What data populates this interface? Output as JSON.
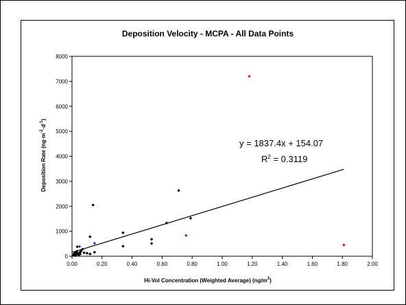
{
  "chart_data": {
    "type": "scatter",
    "title": "Deposition Velocity - MCPA - All Data Points",
    "xlabel": {
      "main": "Hi-Vol Concentration (Weighted Average) (ng/m",
      "sup": "3",
      "end": ")"
    },
    "ylabel": {
      "main": "Deposition Rate (ng·m",
      "sup1": "-2",
      "mid": "·d",
      "sup2": "-1",
      "end": ")"
    },
    "xlim": [
      0,
      2
    ],
    "ylim": [
      0,
      8000
    ],
    "xticks": [
      "0.00",
      "0.20",
      "0.40",
      "0.60",
      "0.80",
      "1.00",
      "1.20",
      "1.40",
      "1.60",
      "1.80",
      "2.00"
    ],
    "xtick_values": [
      0,
      0.2,
      0.4,
      0.6,
      0.8,
      1.0,
      1.2,
      1.4,
      1.6,
      1.8,
      2.0
    ],
    "yticks": [
      "0",
      "1000",
      "2000",
      "3000",
      "4000",
      "5000",
      "6000",
      "7000",
      "8000"
    ],
    "ytick_values": [
      0,
      1000,
      2000,
      3000,
      4000,
      5000,
      6000,
      7000,
      8000
    ],
    "grid": false,
    "legend": "none",
    "series": [
      {
        "color": "#000000",
        "points": [
          [
            0.01,
            40
          ],
          [
            0.012,
            80
          ],
          [
            0.015,
            60
          ],
          [
            0.018,
            120
          ],
          [
            0.02,
            30
          ],
          [
            0.022,
            90
          ],
          [
            0.025,
            140
          ],
          [
            0.03,
            70
          ],
          [
            0.032,
            200
          ],
          [
            0.035,
            380
          ],
          [
            0.04,
            110
          ],
          [
            0.045,
            50
          ],
          [
            0.05,
            150
          ],
          [
            0.055,
            90
          ],
          [
            0.06,
            200
          ],
          [
            0.07,
            280
          ],
          [
            0.08,
            140
          ],
          [
            0.1,
            120
          ],
          [
            0.12,
            780
          ],
          [
            0.12,
            90
          ],
          [
            0.14,
            2050
          ],
          [
            0.15,
            160
          ],
          [
            0.34,
            940
          ],
          [
            0.34,
            400
          ],
          [
            0.53,
            680
          ],
          [
            0.53,
            510
          ],
          [
            0.63,
            1330
          ],
          [
            0.71,
            2630
          ],
          [
            0.79,
            1520
          ]
        ]
      },
      {
        "color": "#1f3fbf",
        "points": [
          [
            0.05,
            390
          ],
          [
            0.15,
            520
          ],
          [
            0.76,
            830
          ]
        ]
      },
      {
        "color": "#e8141c",
        "points": [
          [
            1.18,
            7200
          ],
          [
            1.81,
            450
          ]
        ]
      }
    ],
    "trendline": {
      "slope": 1837.4,
      "intercept": 154.07,
      "x_range": [
        0,
        1.81
      ],
      "color": "#000000"
    },
    "equation": "y = 1837.4x + 154.07",
    "r2_label": "R",
    "r2_sup": "2",
    "r2_value": " = 0.3119"
  }
}
